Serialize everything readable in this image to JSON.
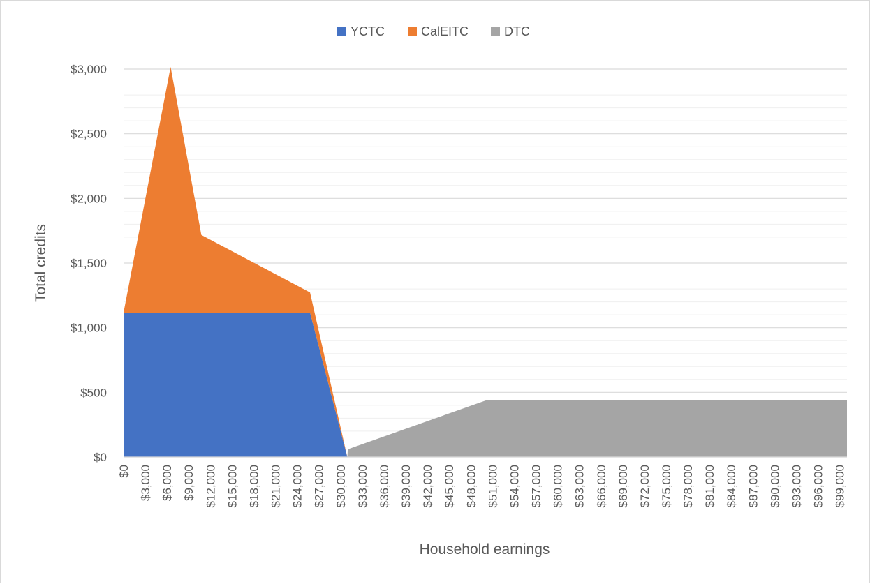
{
  "chart_data": {
    "type": "area",
    "stacked": true,
    "title": "",
    "xlabel": "Household earnings",
    "ylabel": "Total credits",
    "ylim": [
      0,
      3000
    ],
    "y_major_step": 500,
    "y_minor_step": 100,
    "y_ticks": [
      "$0",
      "$500",
      "$1,000",
      "$1,500",
      "$2,000",
      "$2,500",
      "$3,000"
    ],
    "x_range": [
      0,
      100000
    ],
    "x_ticks": [
      "$0",
      "$3,000",
      "$6,000",
      "$9,000",
      "$12,000",
      "$15,000",
      "$18,000",
      "$21,000",
      "$24,000",
      "$27,000",
      "$30,000",
      "$33,000",
      "$36,000",
      "$39,000",
      "$42,000",
      "$45,000",
      "$48,000",
      "$51,000",
      "$54,000",
      "$57,000",
      "$60,000",
      "$63,000",
      "$66,000",
      "$69,000",
      "$72,000",
      "$75,000",
      "$78,000",
      "$81,000",
      "$84,000",
      "$87,000",
      "$90,000",
      "$93,000",
      "$96,000",
      "$99,000"
    ],
    "grid": true,
    "legend_position": "top",
    "series": [
      {
        "name": "YCTC",
        "color": "#4472c4",
        "points": [
          [
            0,
            1117
          ],
          [
            25775,
            1117
          ],
          [
            30930,
            0
          ],
          [
            100000,
            0
          ]
        ]
      },
      {
        "name": "CalEITC",
        "color": "#ed7d31",
        "points": [
          [
            0,
            0
          ],
          [
            6500,
            1900
          ],
          [
            10750,
            600
          ],
          [
            25800,
            155
          ],
          [
            30930,
            0
          ],
          [
            100000,
            0
          ]
        ]
      },
      {
        "name": "DTC",
        "color": "#a5a5a5",
        "points": [
          [
            0,
            0
          ],
          [
            30930,
            0
          ],
          [
            31000,
            60
          ],
          [
            50200,
            440
          ],
          [
            100000,
            440
          ]
        ]
      }
    ]
  }
}
